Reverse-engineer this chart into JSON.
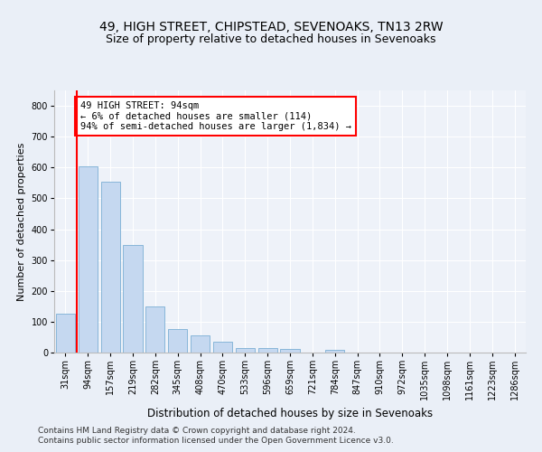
{
  "title1": "49, HIGH STREET, CHIPSTEAD, SEVENOAKS, TN13 2RW",
  "title2": "Size of property relative to detached houses in Sevenoaks",
  "xlabel": "Distribution of detached houses by size in Sevenoaks",
  "ylabel": "Number of detached properties",
  "categories": [
    "31sqm",
    "94sqm",
    "157sqm",
    "219sqm",
    "282sqm",
    "345sqm",
    "408sqm",
    "470sqm",
    "533sqm",
    "596sqm",
    "659sqm",
    "721sqm",
    "784sqm",
    "847sqm",
    "910sqm",
    "972sqm",
    "1035sqm",
    "1098sqm",
    "1161sqm",
    "1223sqm",
    "1286sqm"
  ],
  "values": [
    125,
    605,
    555,
    348,
    150,
    77,
    55,
    35,
    16,
    14,
    13,
    0,
    9,
    0,
    0,
    0,
    0,
    0,
    0,
    0,
    0
  ],
  "bar_color": "#c5d8f0",
  "bar_edge_color": "#7bafd4",
  "vline_color": "red",
  "annotation_text": "49 HIGH STREET: 94sqm\n← 6% of detached houses are smaller (114)\n94% of semi-detached houses are larger (1,834) →",
  "annotation_box_color": "white",
  "annotation_box_edge": "red",
  "ylim": [
    0,
    850
  ],
  "yticks": [
    0,
    100,
    200,
    300,
    400,
    500,
    600,
    700,
    800
  ],
  "footer1": "Contains HM Land Registry data © Crown copyright and database right 2024.",
  "footer2": "Contains public sector information licensed under the Open Government Licence v3.0.",
  "bg_color": "#eaeff7",
  "plot_bg_color": "#eef2f9",
  "title1_fontsize": 10,
  "title2_fontsize": 9,
  "xlabel_fontsize": 8.5,
  "ylabel_fontsize": 8,
  "tick_fontsize": 7,
  "annotation_fontsize": 7.5,
  "footer_fontsize": 6.5
}
